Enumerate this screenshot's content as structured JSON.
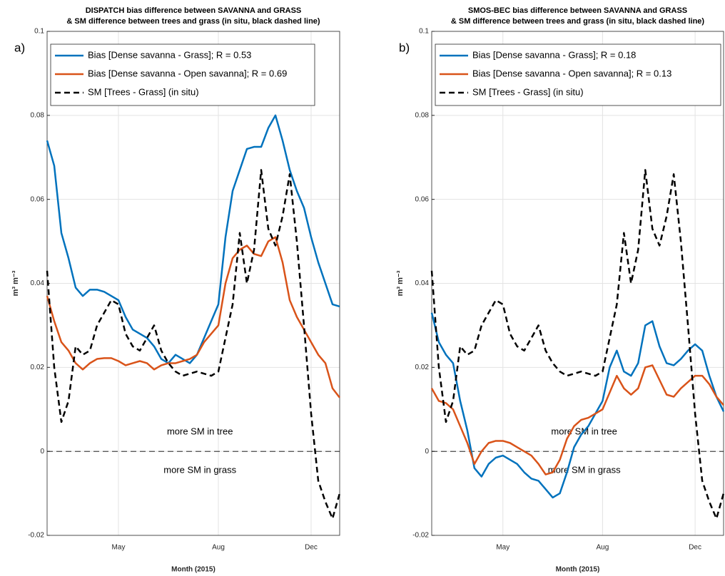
{
  "chart_data": [
    {
      "type": "line",
      "panel_label": "a)",
      "title": "DISPATCH bias difference between SAVANNA and GRASS",
      "subtitle": "& SM difference between trees and grass (in situ, black dashed line)",
      "x_label": "Month (2015)",
      "y_label": "m³ m⁻³",
      "categories": [
        null,
        null,
        null,
        null,
        null,
        null,
        null,
        null,
        null,
        null,
        "May",
        null,
        null,
        null,
        null,
        null,
        null,
        null,
        null,
        null,
        null,
        null,
        null,
        null,
        "Aug",
        null,
        null,
        null,
        null,
        null,
        null,
        null,
        null,
        null,
        null,
        null,
        null,
        "Dec",
        null,
        null,
        null,
        null
      ],
      "series": [
        {
          "name": "Bias [Dense savanna - Grass]; R = 0.53",
          "color": "#0072bd",
          "dashed": false,
          "values": [
            0.074,
            0.068,
            0.052,
            0.046,
            0.039,
            0.037,
            0.0385,
            0.0385,
            0.038,
            0.037,
            0.036,
            0.032,
            0.029,
            0.028,
            0.027,
            0.025,
            0.022,
            0.021,
            0.023,
            0.022,
            0.021,
            0.023,
            0.027,
            0.031,
            0.035,
            0.051,
            0.062,
            0.067,
            0.072,
            0.0725,
            0.0725,
            0.077,
            0.08,
            0.074,
            0.067,
            0.062,
            0.058,
            0.051,
            0.045,
            0.04,
            0.035,
            0.0345
          ]
        },
        {
          "name": "Bias [Dense savanna - Open savanna]; R = 0.69",
          "color": "#d95319",
          "dashed": false,
          "values": [
            0.037,
            0.031,
            0.026,
            0.024,
            0.021,
            0.0195,
            0.021,
            0.022,
            0.0222,
            0.0222,
            0.0215,
            0.0205,
            0.021,
            0.0215,
            0.021,
            0.0195,
            0.0205,
            0.021,
            0.021,
            0.0215,
            0.022,
            0.023,
            0.026,
            0.028,
            0.03,
            0.04,
            0.046,
            0.048,
            0.049,
            0.047,
            0.0465,
            0.05,
            0.051,
            0.045,
            0.036,
            0.032,
            0.029,
            0.026,
            0.023,
            0.021,
            0.015,
            0.0128
          ]
        },
        {
          "name": "SM [Trees - Grass] (in situ)",
          "color": "#000000",
          "dashed": true,
          "values": [
            0.043,
            0.02,
            0.007,
            0.012,
            0.025,
            0.023,
            0.024,
            0.03,
            0.033,
            0.036,
            0.035,
            0.028,
            0.025,
            0.024,
            0.027,
            0.03,
            0.024,
            0.021,
            0.019,
            0.018,
            0.0185,
            0.019,
            0.0185,
            0.018,
            0.019,
            0.027,
            0.035,
            0.052,
            0.04,
            0.048,
            0.067,
            0.053,
            0.049,
            0.056,
            0.066,
            0.05,
            0.03,
            0.009,
            -0.007,
            -0.012,
            -0.016,
            -0.01
          ]
        }
      ],
      "reference_line": 0,
      "annotations": [
        "more SM in tree",
        "more SM in grass"
      ],
      "ylim": [
        -0.02,
        0.1
      ],
      "yticks": [
        -0.02,
        0,
        0.02,
        0.04,
        0.06,
        0.08,
        0.1
      ],
      "grid": true,
      "legend": "top-left"
    },
    {
      "type": "line",
      "panel_label": "b)",
      "title": "SMOS-BEC bias difference between SAVANNA and GRASS",
      "subtitle": "& SM difference between trees and grass (in situ, black dashed line)",
      "x_label": "Month (2015)",
      "y_label": "m³ m⁻³",
      "categories": [
        null,
        null,
        null,
        null,
        null,
        null,
        null,
        null,
        null,
        null,
        "May",
        null,
        null,
        null,
        null,
        null,
        null,
        null,
        null,
        null,
        null,
        null,
        null,
        null,
        "Aug",
        null,
        null,
        null,
        null,
        null,
        null,
        null,
        null,
        null,
        null,
        null,
        null,
        "Dec",
        null,
        null,
        null,
        null
      ],
      "series": [
        {
          "name": "Bias [Dense savanna - Grass]; R = 0.18",
          "color": "#0072bd",
          "dashed": false,
          "values": [
            0.033,
            0.026,
            0.023,
            0.021,
            0.012,
            0.005,
            -0.004,
            -0.006,
            -0.003,
            -0.0015,
            -0.001,
            -0.002,
            -0.003,
            -0.005,
            -0.0065,
            -0.007,
            -0.009,
            -0.011,
            -0.01,
            -0.005,
            0.001,
            0.004,
            0.006,
            0.009,
            0.012,
            0.02,
            0.024,
            0.019,
            0.018,
            0.021,
            0.03,
            0.031,
            0.025,
            0.021,
            0.0205,
            0.022,
            0.024,
            0.0255,
            0.024,
            0.018,
            0.013,
            0.0095
          ]
        },
        {
          "name": "Bias [Dense savanna - Open savanna]; R = 0.13",
          "color": "#d95319",
          "dashed": false,
          "values": [
            0.015,
            0.012,
            0.0115,
            0.01,
            0.006,
            0.002,
            -0.003,
            0.0,
            0.002,
            0.0025,
            0.0025,
            0.002,
            0.001,
            0.0,
            -0.001,
            -0.003,
            -0.0055,
            -0.005,
            -0.002,
            0.003,
            0.006,
            0.0075,
            0.008,
            0.009,
            0.01,
            0.014,
            0.018,
            0.015,
            0.0135,
            0.015,
            0.02,
            0.0205,
            0.017,
            0.0135,
            0.013,
            0.015,
            0.0165,
            0.018,
            0.018,
            0.016,
            0.013,
            0.011
          ]
        },
        {
          "name": "SM [Trees - Grass] (in situ)",
          "color": "#000000",
          "dashed": true,
          "values": [
            0.043,
            0.02,
            0.007,
            0.012,
            0.025,
            0.023,
            0.024,
            0.03,
            0.033,
            0.036,
            0.035,
            0.028,
            0.025,
            0.024,
            0.027,
            0.03,
            0.024,
            0.021,
            0.019,
            0.018,
            0.0185,
            0.019,
            0.0185,
            0.018,
            0.019,
            0.027,
            0.035,
            0.052,
            0.04,
            0.048,
            0.067,
            0.053,
            0.049,
            0.056,
            0.066,
            0.05,
            0.03,
            0.009,
            -0.007,
            -0.012,
            -0.016,
            -0.01
          ]
        }
      ],
      "reference_line": 0,
      "annotations": [
        "more SM in tree",
        "more SM in grass"
      ],
      "ylim": [
        -0.02,
        0.1
      ],
      "yticks": [
        -0.02,
        0,
        0.02,
        0.04,
        0.06,
        0.08,
        0.1
      ],
      "grid": true,
      "legend": "top-left"
    }
  ]
}
